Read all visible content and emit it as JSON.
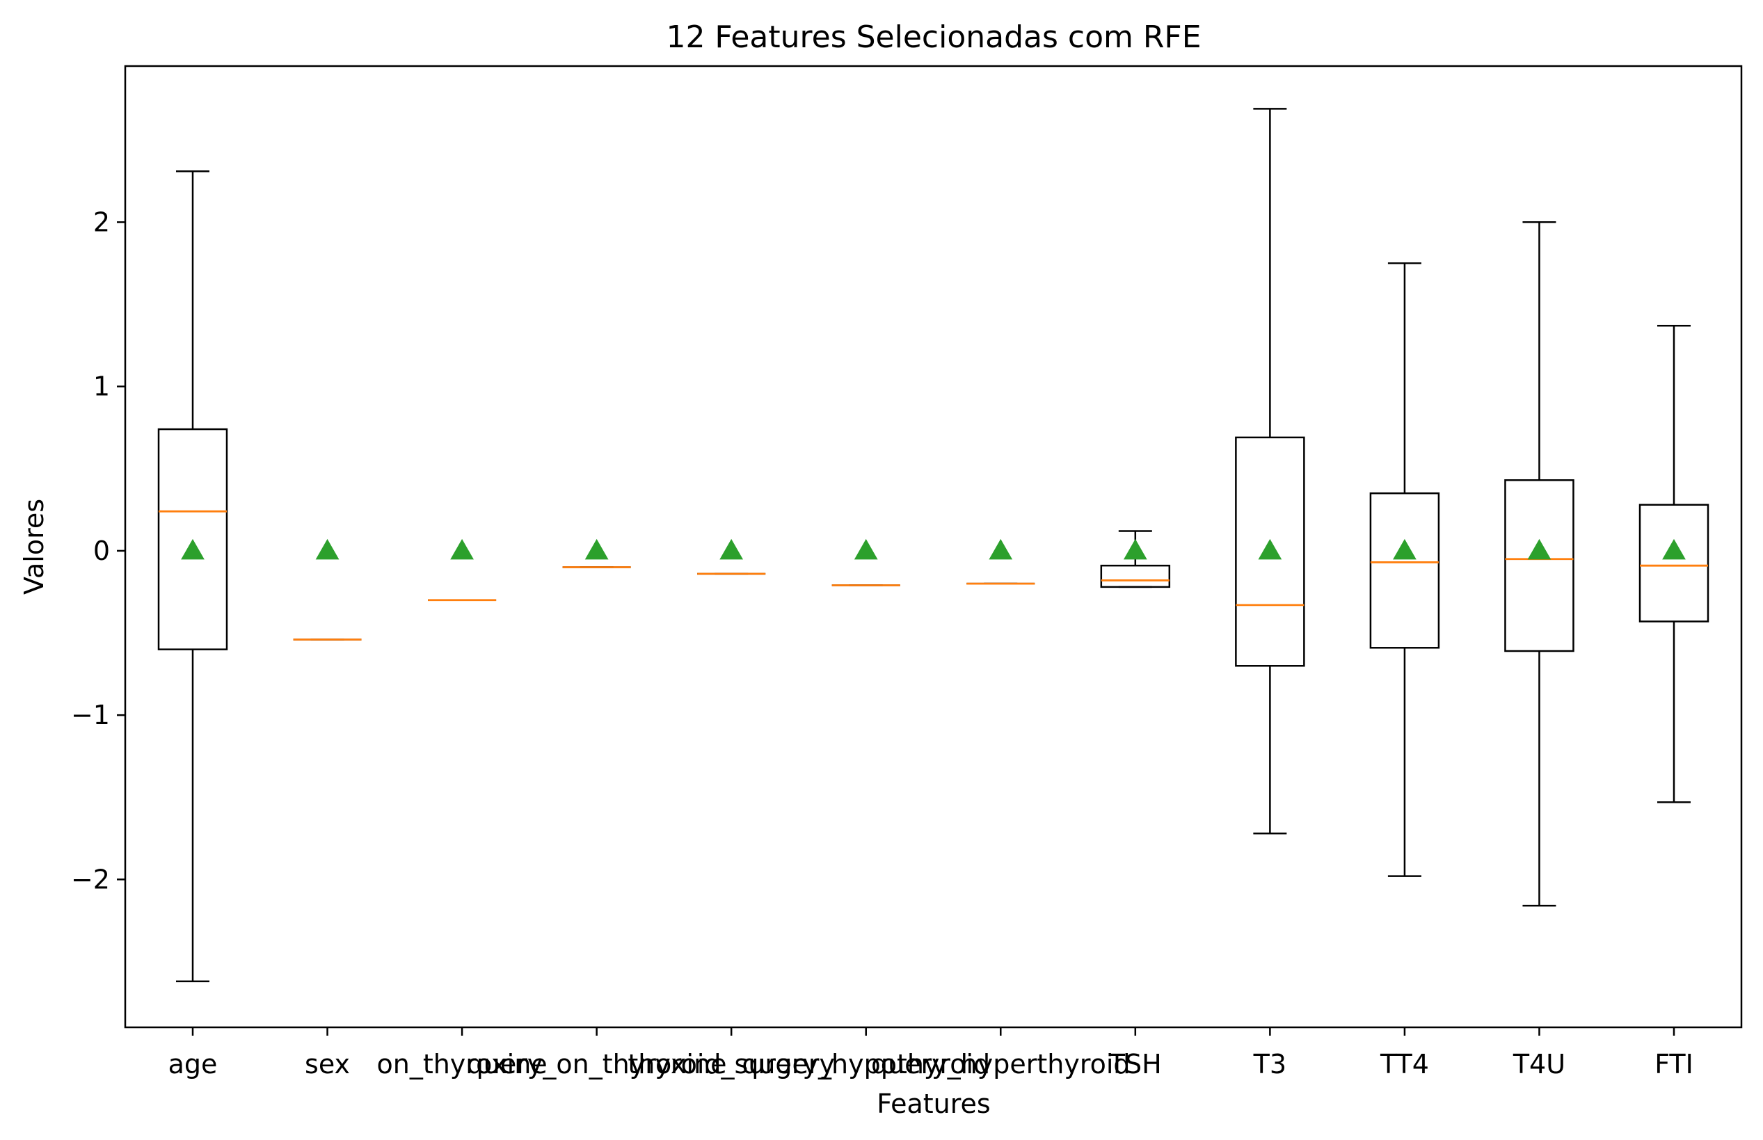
{
  "chart_data": {
    "type": "box",
    "title": "12 Features Selecionadas com RFE",
    "xlabel": "Features",
    "ylabel": "Valores",
    "ylim": [
      -2.9,
      2.95
    ],
    "yticks": [
      {
        "value": -2,
        "label": "−2"
      },
      {
        "value": -1,
        "label": "−1"
      },
      {
        "value": 0,
        "label": "0"
      },
      {
        "value": 1,
        "label": "1"
      },
      {
        "value": 2,
        "label": "2"
      }
    ],
    "grid": false,
    "legend": "none",
    "categories": [
      "age",
      "sex",
      "on_thyroxine",
      "query_on_thyroxine",
      "thyroid_surgery",
      "query_hypothyroid",
      "query_hyperthyroid",
      "TSH",
      "T3",
      "TT4",
      "T4U",
      "FTI"
    ],
    "boxes": [
      {
        "whisker_low": -2.62,
        "q1": -0.6,
        "median": 0.24,
        "q3": 0.74,
        "whisker_high": 2.31,
        "mean": 0.0
      },
      {
        "whisker_low": -0.54,
        "q1": -0.54,
        "median": -0.54,
        "q3": -0.54,
        "whisker_high": -0.54,
        "mean": 0.0
      },
      {
        "whisker_low": -0.3,
        "q1": -0.3,
        "median": -0.3,
        "q3": -0.3,
        "whisker_high": -0.3,
        "mean": 0.0
      },
      {
        "whisker_low": -0.1,
        "q1": -0.1,
        "median": -0.1,
        "q3": -0.1,
        "whisker_high": -0.1,
        "mean": 0.0
      },
      {
        "whisker_low": -0.14,
        "q1": -0.14,
        "median": -0.14,
        "q3": -0.14,
        "whisker_high": -0.14,
        "mean": 0.0
      },
      {
        "whisker_low": -0.21,
        "q1": -0.21,
        "median": -0.21,
        "q3": -0.21,
        "whisker_high": -0.21,
        "mean": 0.0
      },
      {
        "whisker_low": -0.2,
        "q1": -0.2,
        "median": -0.2,
        "q3": -0.2,
        "whisker_high": -0.2,
        "mean": 0.0
      },
      {
        "whisker_low": -0.22,
        "q1": -0.22,
        "median": -0.18,
        "q3": -0.09,
        "whisker_high": 0.12,
        "mean": 0.0
      },
      {
        "whisker_low": -1.72,
        "q1": -0.7,
        "median": -0.33,
        "q3": 0.69,
        "whisker_high": 2.69,
        "mean": 0.0
      },
      {
        "whisker_low": -1.98,
        "q1": -0.59,
        "median": -0.07,
        "q3": 0.35,
        "whisker_high": 1.75,
        "mean": 0.0
      },
      {
        "whisker_low": -2.16,
        "q1": -0.61,
        "median": -0.05,
        "q3": 0.43,
        "whisker_high": 2.0,
        "mean": 0.0
      },
      {
        "whisker_low": -1.53,
        "q1": -0.43,
        "median": -0.09,
        "q3": 0.28,
        "whisker_high": 1.37,
        "mean": 0.0
      }
    ],
    "colors": {
      "box": "#000000",
      "median": "#ff7f0e",
      "mean": "#2ca02c"
    }
  }
}
